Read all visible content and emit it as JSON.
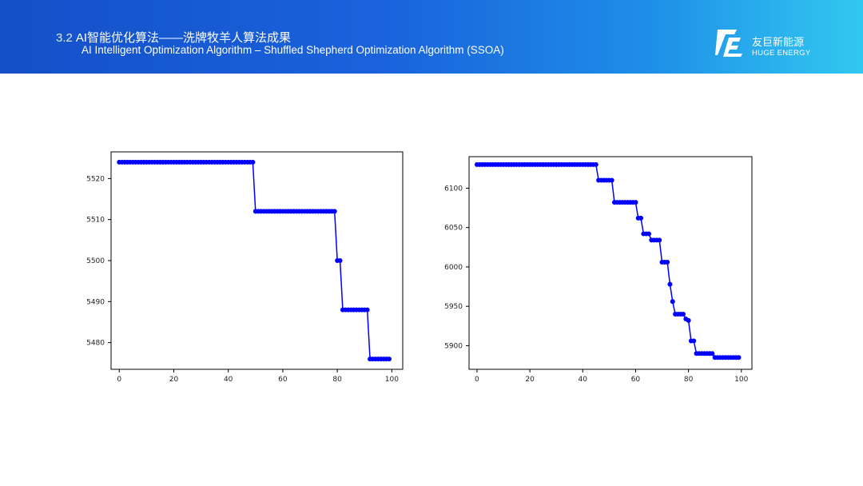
{
  "header": {
    "section_number": "3.2",
    "title_cn": "AI智能优化算法——洗牌牧羊人算法成果",
    "title_en": "AI Intelligent Optimization Algorithm – Shuffled Shepherd Optimization Algorithm (SSOA)",
    "logo_cn": "友巨新能源",
    "logo_en": "HUGE ENERGY"
  },
  "colors": {
    "banner_start": "#1450c8",
    "banner_end": "#32c8f0",
    "series": "#0000ff"
  },
  "chart_data": [
    {
      "type": "line",
      "marker": "circle",
      "title": "",
      "xlabel": "",
      "ylabel": "",
      "xlim": [
        -3,
        104
      ],
      "ylim": [
        5473.5,
        5526.5
      ],
      "xticks": [
        0,
        20,
        40,
        60,
        80,
        100
      ],
      "yticks": [
        5480,
        5490,
        5500,
        5510,
        5520
      ],
      "steps": [
        [
          0,
          49,
          5524
        ],
        [
          50,
          79,
          5512
        ],
        [
          80,
          81,
          5500
        ],
        [
          82,
          91,
          5488
        ],
        [
          92,
          99,
          5476
        ]
      ]
    },
    {
      "type": "line",
      "marker": "circle",
      "title": "",
      "xlabel": "",
      "ylabel": "",
      "xlim": [
        -3,
        104
      ],
      "ylim": [
        5870,
        6140
      ],
      "xticks": [
        0,
        20,
        40,
        60,
        80,
        100
      ],
      "yticks": [
        5900,
        5950,
        6000,
        6050,
        6100
      ],
      "steps": [
        [
          0,
          45,
          6130
        ],
        [
          46,
          51,
          6110
        ],
        [
          52,
          60,
          6082
        ],
        [
          61,
          62,
          6062
        ],
        [
          63,
          65,
          6042
        ],
        [
          66,
          69,
          6034
        ],
        [
          70,
          72,
          6006
        ],
        [
          73,
          73,
          5978
        ],
        [
          74,
          74,
          5956
        ],
        [
          75,
          78,
          5940
        ],
        [
          79,
          79,
          5934
        ],
        [
          80,
          80,
          5932
        ],
        [
          81,
          82,
          5906
        ],
        [
          83,
          89,
          5890
        ],
        [
          90,
          99,
          5885
        ]
      ]
    }
  ]
}
